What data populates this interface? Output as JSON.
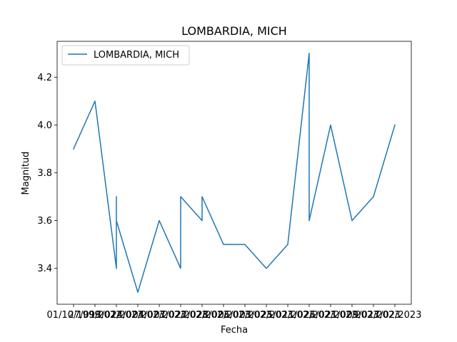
{
  "chart_data": {
    "type": "line",
    "title": "LOMBARDIA, MICH",
    "xlabel": "Fecha",
    "ylabel": "Magnitud",
    "ylim": [
      3.25,
      4.35
    ],
    "yticks": [
      3.4,
      3.6,
      3.8,
      4.0,
      4.2
    ],
    "ytick_labels": [
      "3.4",
      "3.6",
      "3.8",
      "4.0",
      "4.2"
    ],
    "xtick_labels": [
      "01/10/1999",
      "27/09/2022",
      "13/01/2023",
      "24/02/2023",
      "04/02/2023",
      "07/02/2023",
      "22/02/2023",
      "28/02/2023",
      "06/02/2023",
      "03/02/2023",
      "25/02/2023",
      "11/02/2023",
      "26/02/2023",
      "21/02/2023",
      "09/02/2023",
      "17/02/2023"
    ],
    "grid": false,
    "legend_position": "upper-left",
    "series": [
      {
        "name": "LOMBARDIA, MICH",
        "color": "#1f77b4",
        "x": [
          0,
          1,
          2,
          2,
          2,
          2,
          3,
          4,
          5,
          5,
          6,
          6,
          7,
          8,
          9,
          10,
          11,
          11,
          12,
          13,
          14,
          15
        ],
        "y": [
          3.9,
          4.1,
          3.4,
          3.7,
          3.6,
          3.6,
          3.3,
          3.6,
          3.4,
          3.7,
          3.6,
          3.7,
          3.5,
          3.5,
          3.4,
          3.5,
          4.3,
          3.6,
          4.0,
          3.6,
          3.7,
          4.0
        ]
      }
    ]
  }
}
